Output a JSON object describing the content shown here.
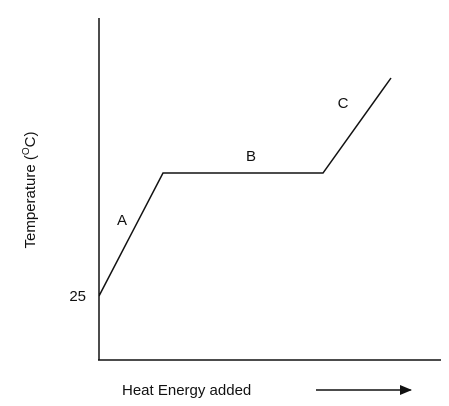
{
  "axes": {
    "y_label_start": "Temperature (",
    "y_label_sup": "O",
    "y_label_end": "C)",
    "y_tick": "25",
    "x_label": "Heat Energy added"
  },
  "segments": [
    {
      "label": "A"
    },
    {
      "label": "B"
    },
    {
      "label": "C"
    }
  ]
}
